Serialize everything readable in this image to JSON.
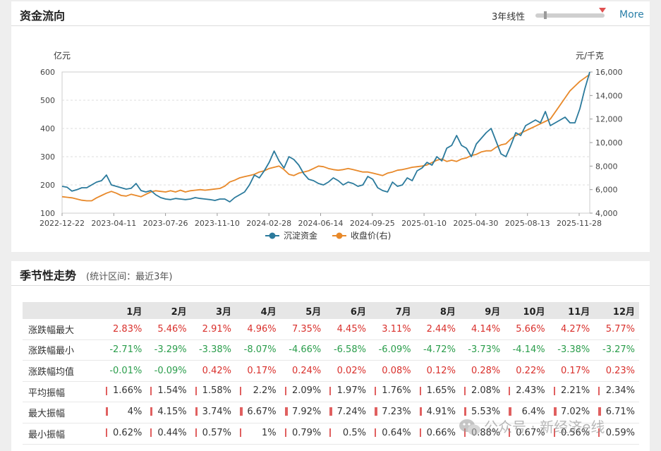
{
  "fund_flow": {
    "title": "资金流向",
    "range_label": "3年线性",
    "more_label": "More"
  },
  "chart_data": {
    "type": "line",
    "title": "资金流向",
    "left_unit": "亿元",
    "right_unit": "元/千克",
    "ylim_left": [
      100,
      600
    ],
    "ylim_right": [
      4000,
      16000
    ],
    "yticks_left": [
      "600",
      "500",
      "400",
      "300",
      "200",
      "100"
    ],
    "yticks_right": [
      "16,000",
      "14,000",
      "12,000",
      "10,000",
      "8,000",
      "6,000",
      "4,000"
    ],
    "xticks": [
      "2022-12-22",
      "2023-04-11",
      "2023-07-26",
      "2023-11-10",
      "2024-02-28",
      "2024-06-14",
      "2024-09-25",
      "2025-01-10",
      "2025-04-30",
      "2025-08-13",
      "2025-11-28"
    ],
    "series": [
      {
        "name": "沉淀资金",
        "axis": "left",
        "color": "#2b7a9c",
        "values": [
          195,
          192,
          178,
          183,
          190,
          190,
          200,
          210,
          215,
          235,
          200,
          195,
          190,
          185,
          188,
          205,
          180,
          175,
          180,
          165,
          155,
          150,
          148,
          152,
          150,
          148,
          150,
          155,
          152,
          150,
          148,
          145,
          150,
          150,
          140,
          155,
          165,
          175,
          200,
          235,
          225,
          250,
          280,
          320,
          285,
          260,
          300,
          290,
          270,
          240,
          220,
          215,
          205,
          200,
          210,
          225,
          215,
          200,
          210,
          205,
          195,
          200,
          230,
          220,
          190,
          180,
          175,
          210,
          195,
          200,
          225,
          215,
          250,
          260,
          280,
          270,
          300,
          285,
          330,
          340,
          375,
          340,
          330,
          300,
          345,
          365,
          385,
          400,
          355,
          310,
          300,
          340,
          385,
          375,
          410,
          420,
          430,
          420,
          460,
          410,
          420,
          430,
          440,
          420,
          420,
          470,
          540,
          600
        ]
      },
      {
        "name": "收盘价(右)",
        "axis": "right",
        "color": "#e8892a",
        "values": [
          5400,
          5350,
          5300,
          5200,
          5100,
          5050,
          5050,
          5300,
          5500,
          5700,
          5850,
          5700,
          5500,
          5450,
          5600,
          5500,
          5400,
          5600,
          5800,
          5900,
          5850,
          5800,
          5900,
          5800,
          5950,
          5800,
          5900,
          5950,
          6000,
          5950,
          6000,
          6050,
          6100,
          6300,
          6650,
          6800,
          7000,
          7100,
          7200,
          7300,
          7500,
          7600,
          7800,
          7900,
          8000,
          7700,
          7300,
          7200,
          7400,
          7500,
          7600,
          7800,
          8000,
          7950,
          7800,
          7700,
          7650,
          7700,
          7800,
          7700,
          7600,
          7500,
          7500,
          7400,
          7300,
          7200,
          7400,
          7500,
          7650,
          7700,
          7800,
          7900,
          7950,
          8000,
          8100,
          8300,
          8500,
          8600,
          8400,
          8500,
          8400,
          8600,
          8700,
          8900,
          9000,
          9200,
          9300,
          9300,
          9600,
          9800,
          9900,
          10300,
          10600,
          10800,
          11000,
          11200,
          11400,
          11600,
          11800,
          12000,
          12600,
          13200,
          13800,
          14400,
          14800,
          15200,
          15500,
          15800
        ]
      }
    ]
  },
  "seasonal": {
    "title": "季节性走势",
    "subtitle": "(统计区间：最近3年)",
    "months": [
      "1月",
      "2月",
      "3月",
      "4月",
      "5月",
      "6月",
      "7月",
      "8月",
      "9月",
      "10月",
      "11月",
      "12月"
    ],
    "rows": [
      {
        "label": "涨跌幅最大",
        "kind": "pct",
        "values": [
          "2.83%",
          "5.46%",
          "2.91%",
          "4.96%",
          "7.35%",
          "4.45%",
          "3.11%",
          "2.44%",
          "4.14%",
          "5.66%",
          "4.27%",
          "5.77%"
        ]
      },
      {
        "label": "涨跌幅最小",
        "kind": "pct",
        "values": [
          "-2.71%",
          "-3.29%",
          "-3.38%",
          "-8.07%",
          "-4.66%",
          "-6.58%",
          "-6.09%",
          "-4.72%",
          "-3.73%",
          "-4.14%",
          "-3.38%",
          "-3.27%"
        ]
      },
      {
        "label": "涨跌幅均值",
        "kind": "pct",
        "values": [
          "-0.01%",
          "-0.09%",
          "0.42%",
          "0.17%",
          "0.24%",
          "0.02%",
          "0.08%",
          "0.12%",
          "0.28%",
          "0.22%",
          "0.17%",
          "0.23%"
        ]
      },
      {
        "label": "平均振幅",
        "kind": "amp",
        "values": [
          "1.66%",
          "1.54%",
          "1.58%",
          "2.2%",
          "2.09%",
          "1.97%",
          "1.76%",
          "1.65%",
          "2.08%",
          "2.43%",
          "2.21%",
          "2.34%"
        ]
      },
      {
        "label": "最大振幅",
        "kind": "amp",
        "values": [
          "4%",
          "4.15%",
          "3.74%",
          "6.67%",
          "7.92%",
          "7.24%",
          "7.23%",
          "4.91%",
          "5.53%",
          "6.4%",
          "7.02%",
          "6.71%"
        ]
      },
      {
        "label": "最小振幅",
        "kind": "amp",
        "values": [
          "0.62%",
          "0.44%",
          "0.57%",
          "1%",
          "0.79%",
          "0.5%",
          "0.64%",
          "0.66%",
          "0.88%",
          "0.67%",
          "0.56%",
          "0.59%"
        ]
      }
    ]
  },
  "watermark": "公众号 · 新经济e线"
}
